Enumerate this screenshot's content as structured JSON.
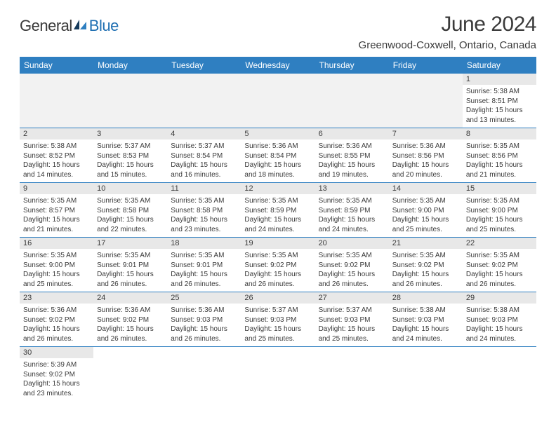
{
  "logo": {
    "part1": "General",
    "part2": "Blue"
  },
  "title": "June 2024",
  "location": "Greenwood-Coxwell, Ontario, Canada",
  "colors": {
    "header_bg": "#2f7fc1",
    "header_fg": "#ffffff",
    "daynum_bg": "#e8e8e8",
    "text": "#3a3a3a",
    "logo_blue": "#1f6fb2",
    "row_divider": "#2f7fc1"
  },
  "weekdays": [
    "Sunday",
    "Monday",
    "Tuesday",
    "Wednesday",
    "Thursday",
    "Friday",
    "Saturday"
  ],
  "weeks": [
    [
      null,
      null,
      null,
      null,
      null,
      null,
      {
        "n": "1",
        "sunrise": "5:38 AM",
        "sunset": "8:51 PM",
        "daylight": "15 hours and 13 minutes."
      }
    ],
    [
      {
        "n": "2",
        "sunrise": "5:38 AM",
        "sunset": "8:52 PM",
        "daylight": "15 hours and 14 minutes."
      },
      {
        "n": "3",
        "sunrise": "5:37 AM",
        "sunset": "8:53 PM",
        "daylight": "15 hours and 15 minutes."
      },
      {
        "n": "4",
        "sunrise": "5:37 AM",
        "sunset": "8:54 PM",
        "daylight": "15 hours and 16 minutes."
      },
      {
        "n": "5",
        "sunrise": "5:36 AM",
        "sunset": "8:54 PM",
        "daylight": "15 hours and 18 minutes."
      },
      {
        "n": "6",
        "sunrise": "5:36 AM",
        "sunset": "8:55 PM",
        "daylight": "15 hours and 19 minutes."
      },
      {
        "n": "7",
        "sunrise": "5:36 AM",
        "sunset": "8:56 PM",
        "daylight": "15 hours and 20 minutes."
      },
      {
        "n": "8",
        "sunrise": "5:35 AM",
        "sunset": "8:56 PM",
        "daylight": "15 hours and 21 minutes."
      }
    ],
    [
      {
        "n": "9",
        "sunrise": "5:35 AM",
        "sunset": "8:57 PM",
        "daylight": "15 hours and 21 minutes."
      },
      {
        "n": "10",
        "sunrise": "5:35 AM",
        "sunset": "8:58 PM",
        "daylight": "15 hours and 22 minutes."
      },
      {
        "n": "11",
        "sunrise": "5:35 AM",
        "sunset": "8:58 PM",
        "daylight": "15 hours and 23 minutes."
      },
      {
        "n": "12",
        "sunrise": "5:35 AM",
        "sunset": "8:59 PM",
        "daylight": "15 hours and 24 minutes."
      },
      {
        "n": "13",
        "sunrise": "5:35 AM",
        "sunset": "8:59 PM",
        "daylight": "15 hours and 24 minutes."
      },
      {
        "n": "14",
        "sunrise": "5:35 AM",
        "sunset": "9:00 PM",
        "daylight": "15 hours and 25 minutes."
      },
      {
        "n": "15",
        "sunrise": "5:35 AM",
        "sunset": "9:00 PM",
        "daylight": "15 hours and 25 minutes."
      }
    ],
    [
      {
        "n": "16",
        "sunrise": "5:35 AM",
        "sunset": "9:00 PM",
        "daylight": "15 hours and 25 minutes."
      },
      {
        "n": "17",
        "sunrise": "5:35 AM",
        "sunset": "9:01 PM",
        "daylight": "15 hours and 26 minutes."
      },
      {
        "n": "18",
        "sunrise": "5:35 AM",
        "sunset": "9:01 PM",
        "daylight": "15 hours and 26 minutes."
      },
      {
        "n": "19",
        "sunrise": "5:35 AM",
        "sunset": "9:02 PM",
        "daylight": "15 hours and 26 minutes."
      },
      {
        "n": "20",
        "sunrise": "5:35 AM",
        "sunset": "9:02 PM",
        "daylight": "15 hours and 26 minutes."
      },
      {
        "n": "21",
        "sunrise": "5:35 AM",
        "sunset": "9:02 PM",
        "daylight": "15 hours and 26 minutes."
      },
      {
        "n": "22",
        "sunrise": "5:35 AM",
        "sunset": "9:02 PM",
        "daylight": "15 hours and 26 minutes."
      }
    ],
    [
      {
        "n": "23",
        "sunrise": "5:36 AM",
        "sunset": "9:02 PM",
        "daylight": "15 hours and 26 minutes."
      },
      {
        "n": "24",
        "sunrise": "5:36 AM",
        "sunset": "9:02 PM",
        "daylight": "15 hours and 26 minutes."
      },
      {
        "n": "25",
        "sunrise": "5:36 AM",
        "sunset": "9:03 PM",
        "daylight": "15 hours and 26 minutes."
      },
      {
        "n": "26",
        "sunrise": "5:37 AM",
        "sunset": "9:03 PM",
        "daylight": "15 hours and 25 minutes."
      },
      {
        "n": "27",
        "sunrise": "5:37 AM",
        "sunset": "9:03 PM",
        "daylight": "15 hours and 25 minutes."
      },
      {
        "n": "28",
        "sunrise": "5:38 AM",
        "sunset": "9:03 PM",
        "daylight": "15 hours and 24 minutes."
      },
      {
        "n": "29",
        "sunrise": "5:38 AM",
        "sunset": "9:03 PM",
        "daylight": "15 hours and 24 minutes."
      }
    ],
    [
      {
        "n": "30",
        "sunrise": "5:39 AM",
        "sunset": "9:02 PM",
        "daylight": "15 hours and 23 minutes."
      },
      null,
      null,
      null,
      null,
      null,
      null
    ]
  ],
  "labels": {
    "sunrise": "Sunrise:",
    "sunset": "Sunset:",
    "daylight": "Daylight:"
  }
}
